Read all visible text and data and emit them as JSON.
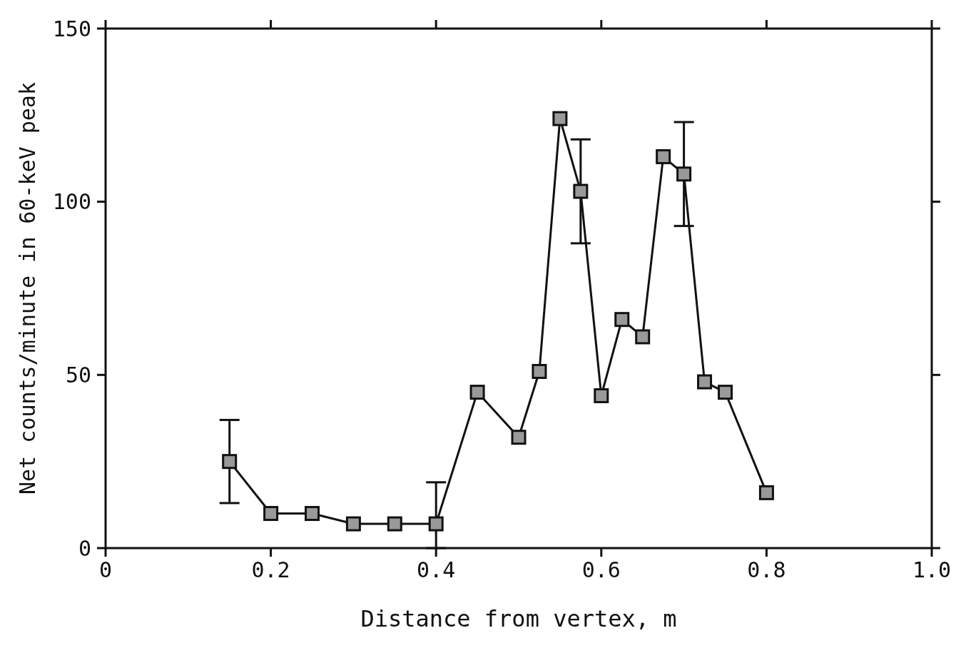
{
  "chart_data": {
    "type": "line",
    "xlabel": "Distance from vertex, m",
    "ylabel": "Net counts/minute in 60-keV peak",
    "x": [
      0.15,
      0.2,
      0.25,
      0.3,
      0.35,
      0.4,
      0.45,
      0.5,
      0.525,
      0.55,
      0.575,
      0.6,
      0.625,
      0.65,
      0.675,
      0.7,
      0.725,
      0.75,
      0.8
    ],
    "series": [
      {
        "color": "#111111",
        "values": [
          25,
          10,
          10,
          7,
          7,
          7,
          45,
          32,
          51,
          124,
          103,
          44,
          66,
          61,
          113,
          108,
          48,
          45,
          16
        ],
        "errors": [
          12,
          null,
          null,
          null,
          null,
          [
            0,
            19
          ],
          null,
          null,
          null,
          null,
          15,
          null,
          null,
          null,
          null,
          15,
          null,
          null,
          null
        ]
      }
    ],
    "xlim": [
      0,
      1
    ],
    "xticks": [
      0,
      0.2,
      0.4,
      0.6,
      0.8,
      {
        "value": 1,
        "label": "1.0"
      }
    ],
    "ylim": [
      0,
      150
    ],
    "yticks": [
      0,
      50,
      100,
      150
    ],
    "marker": "square",
    "line_style": "solid"
  }
}
